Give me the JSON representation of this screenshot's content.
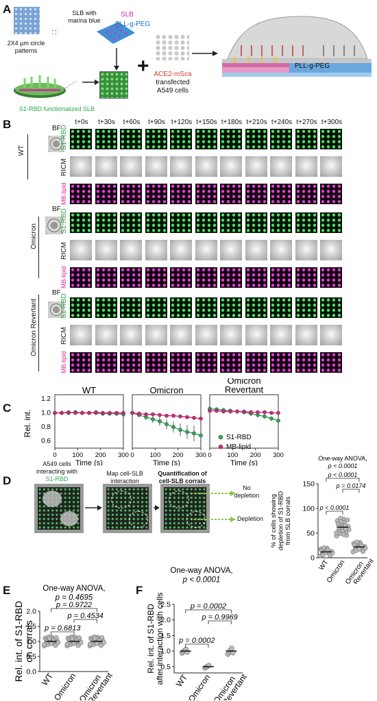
{
  "panelA": {
    "label": "A",
    "pattern_label": "2X4 µm circle patterns",
    "slb_marina": "SLB with marina blue",
    "slb": "SLB",
    "pll": "PLL-g-PEG",
    "s1rbd_slb": "S1-RBD functionalized SLB",
    "ace2_label": "ACE2-mSca",
    "transfected": "transfected",
    "a549": "A549 cells",
    "pll_right": "PLL-g-PEG",
    "plus": "+"
  },
  "panelB": {
    "label": "B",
    "times": [
      "t+0s",
      "t+30s",
      "t+60s",
      "t+90s",
      "t+120s",
      "t+150s",
      "t+180s",
      "t+210s",
      "t+240s",
      "t+270s",
      "t+300s"
    ],
    "bf": "BF",
    "groups": [
      "WT",
      "Omicron",
      "Omicron Revertant"
    ],
    "channels": [
      "S1-RBD",
      "RICM",
      "MB-lipid"
    ]
  },
  "panelC": {
    "label": "C",
    "ylabel": "Rel. int.",
    "xlabel": "Time (s)",
    "titles": [
      "WT",
      "Omicron",
      "Omicron Revertant"
    ],
    "legend": [
      "S1-RBD",
      "MB-lipid"
    ],
    "yticks": [
      "0.6",
      "0.8",
      "1.0",
      "1.2"
    ],
    "xticks": [
      "0",
      "100",
      "200",
      "300"
    ],
    "colors": {
      "s1rbd": "#2fa84f",
      "mblipid": "#d6247f"
    },
    "chart_data": [
      {
        "type": "line",
        "title": "WT",
        "x": [
          0,
          30,
          60,
          90,
          120,
          150,
          180,
          210,
          240,
          270,
          300
        ],
        "series": [
          {
            "name": "S1-RBD",
            "values": [
              1.0,
              1.0,
              1.0,
              1.01,
              1.0,
              1.0,
              1.0,
              0.99,
              0.99,
              0.99,
              0.98
            ]
          },
          {
            "name": "MB-lipid",
            "values": [
              1.0,
              1.0,
              1.01,
              1.0,
              1.0,
              1.0,
              1.01,
              1.0,
              1.0,
              1.0,
              1.0
            ]
          }
        ],
        "ylim": [
          0.5,
          1.2
        ],
        "xlim": [
          0,
          300
        ]
      },
      {
        "type": "line",
        "title": "Omicron",
        "x": [
          0,
          30,
          60,
          90,
          120,
          150,
          180,
          210,
          240,
          270,
          300
        ],
        "series": [
          {
            "name": "S1-RBD",
            "values": [
              1.0,
              0.97,
              0.94,
              0.91,
              0.88,
              0.84,
              0.8,
              0.76,
              0.73,
              0.71,
              0.68
            ]
          },
          {
            "name": "MB-lipid",
            "values": [
              1.0,
              0.99,
              0.98,
              0.98,
              0.97,
              0.96,
              0.96,
              0.95,
              0.94,
              0.93,
              0.92
            ]
          }
        ],
        "ylim": [
          0.5,
          1.2
        ],
        "xlim": [
          0,
          300
        ]
      },
      {
        "type": "line",
        "title": "Omicron Revertant",
        "x": [
          0,
          30,
          60,
          90,
          120,
          150,
          180,
          210,
          240,
          270,
          300
        ],
        "series": [
          {
            "name": "S1-RBD",
            "values": [
              1.06,
              1.05,
              1.04,
              1.03,
              1.02,
              1.01,
              0.99,
              0.97,
              0.95,
              0.92,
              0.89
            ]
          },
          {
            "name": "MB-lipid",
            "values": [
              1.03,
              1.03,
              1.02,
              1.02,
              1.02,
              1.02,
              1.01,
              1.01,
              1.01,
              1.0,
              1.0
            ]
          }
        ],
        "ylim": [
          0.5,
          1.2
        ],
        "xlim": [
          0,
          300
        ]
      }
    ]
  },
  "panelD": {
    "label": "D",
    "step1": "A549 cells interacting with",
    "step1b": "S1-RBD",
    "step2": "Map cell-SLB interaction",
    "step3": "Quantification of cell-SLB corrals",
    "nodep": "No depletion",
    "dep": "Depletion",
    "ylabel": "% of cells showing depletion of S1-RBD from SLB corrals",
    "anova": "One-way ANOVA,",
    "p_main": "p < 0.0001",
    "p_values": [
      "p = 0.0174",
      "p < 0.0001",
      "p < 0.0001"
    ],
    "yticks": [
      "0",
      "50",
      "100",
      "150"
    ],
    "chart_data": {
      "type": "scatter",
      "categories": [
        "WT",
        "Omicron",
        "Omicron Revertant"
      ],
      "means": [
        12,
        62,
        22
      ],
      "ylim": [
        0,
        150
      ]
    }
  },
  "panelE": {
    "label": "E",
    "anova": "One-way ANOVA,",
    "p_main": "p = 0.4695",
    "p_values": [
      "p = 0.9722",
      "p = 0.6813",
      "p = 0.4534"
    ],
    "ylabel": "Rel. int. of S1-RBD on corrals",
    "yticks": [
      "0.0",
      "0.5",
      "1.0",
      "1.5",
      "2.0"
    ],
    "categories": [
      "WT",
      "Omicron",
      "Omicron Revertant"
    ],
    "chart_data": {
      "type": "scatter",
      "categories": [
        "WT",
        "Omicron",
        "Omicron Revertant"
      ],
      "means": [
        1.0,
        1.0,
        1.0
      ],
      "ylim": [
        0,
        2.0
      ]
    }
  },
  "panelF": {
    "label": "F",
    "anova": "One-way ANOVA,",
    "p_main": "p < 0.0001",
    "p_values": [
      "p = 0.9969",
      "p = 0.0002",
      "p = 0.0002"
    ],
    "ylabel": "Rel. int. of S1-RBD after interaction with cells",
    "yticks": [
      "0.5",
      "1.0",
      "1.5",
      "2.0",
      "2.5"
    ],
    "categories": [
      "WT",
      "Omicron",
      "Omicron Revertant"
    ],
    "chart_data": {
      "type": "scatter",
      "categories": [
        "WT",
        "Omicron",
        "Omicron Revertant"
      ],
      "means": [
        1.0,
        0.5,
        1.0
      ],
      "ylim": [
        0.3,
        2.5
      ]
    }
  }
}
